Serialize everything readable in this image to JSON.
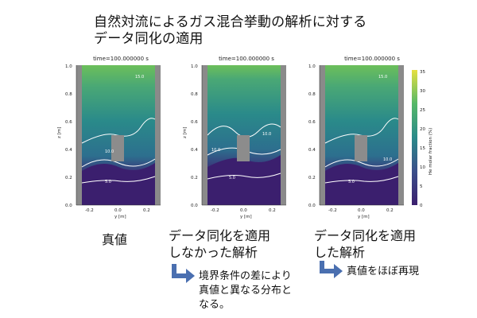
{
  "title": {
    "line1": "自然対流によるガス混合挙動の解析に対する",
    "line2": "データ同化の適用"
  },
  "panels": [
    {
      "time_label": "time=100.000000 s",
      "caption_lines": [
        "真値"
      ]
    },
    {
      "time_label": "time=100.000000 s",
      "caption_lines": [
        "データ同化を適用",
        "しなかった解析"
      ]
    },
    {
      "time_label": "time=100.000000 s",
      "caption_lines": [
        "データ同化を適用",
        "した解析"
      ]
    }
  ],
  "notes": {
    "middle": [
      "境界条件の差により",
      "真値と異なる分布と",
      "なる。"
    ],
    "right": [
      "真値をほぼ再現"
    ]
  },
  "axes": {
    "xlabel": "y [m]",
    "ylabel": "z [m]",
    "x_ticks": [
      "-0.2",
      "0.0",
      "0.2"
    ],
    "y_ticks": [
      "0.0",
      "0.2",
      "0.4",
      "0.6",
      "0.8",
      "1.0"
    ]
  },
  "colorbar": {
    "label": "He molar fraction (%)",
    "ticks": [
      "0",
      "5",
      "10",
      "15",
      "20",
      "25",
      "30",
      "35"
    ],
    "range": [
      0,
      35
    ]
  },
  "contour_labels": [
    "5.0",
    "10.0",
    "15.0"
  ],
  "colors": {
    "low": "#3b1f6e",
    "mid": "#2a8a8a",
    "high": "#7ec850",
    "top": "#e6e040",
    "wall": "#8a8a8a",
    "arrow": "#4a6fb0"
  }
}
